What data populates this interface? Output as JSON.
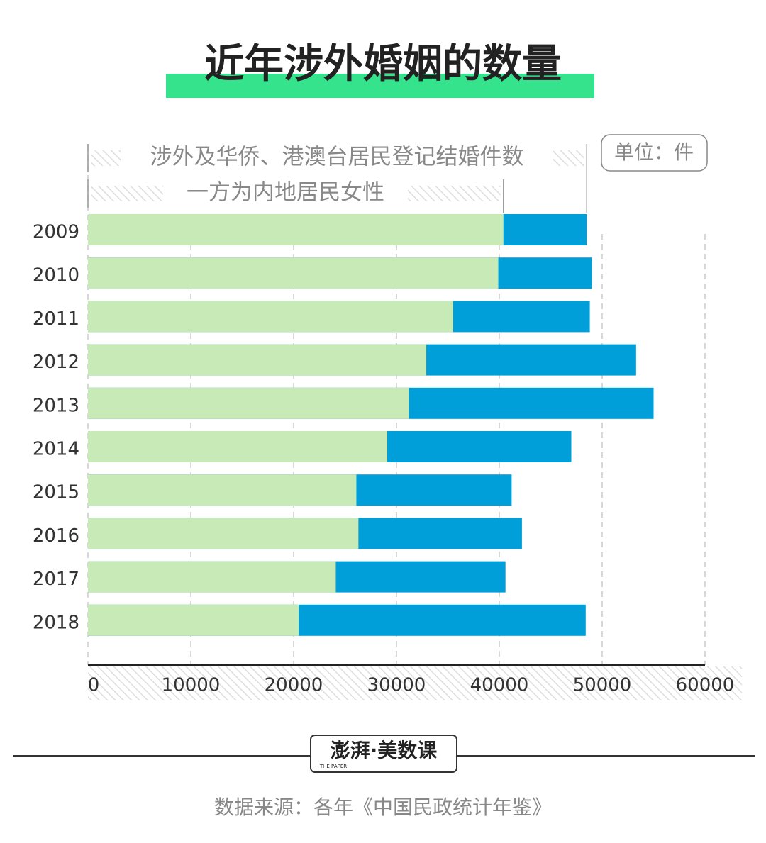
{
  "chart_data": {
    "type": "bar",
    "orientation": "horizontal",
    "overlap": true,
    "title": "近年涉外婚姻的数量",
    "unit": "单位：件",
    "categories": [
      "2009",
      "2010",
      "2011",
      "2012",
      "2013",
      "2014",
      "2015",
      "2016",
      "2017",
      "2018"
    ],
    "series": [
      {
        "name": "涉外及华侨、港澳台居民登记结婚件数",
        "color": "#009fd9",
        "values": [
          48500,
          49000,
          48800,
          53300,
          55000,
          47000,
          41200,
          42200,
          40600,
          48400
        ]
      },
      {
        "name": "一方为内地居民女性",
        "color": "#c8eab6",
        "values": [
          40400,
          39900,
          35500,
          32900,
          31200,
          29100,
          26100,
          26300,
          24100,
          20500
        ]
      }
    ],
    "xlim": [
      0,
      60000
    ],
    "xticks": [
      0,
      10000,
      20000,
      30000,
      40000,
      50000,
      60000
    ],
    "grid": true,
    "logo": {
      "name": "澎湃·美数课",
      "sub": "THE PAPER"
    },
    "source": "数据来源：各年《中国民政统计年鉴》"
  }
}
